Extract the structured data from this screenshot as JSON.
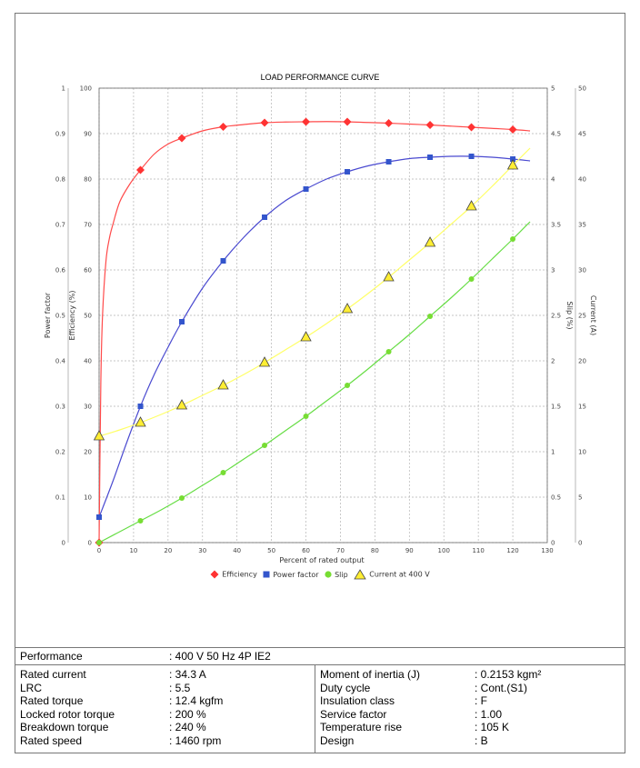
{
  "chart_data": {
    "type": "line",
    "title": "LOAD PERFORMANCE CURVE",
    "xlabel": "Percent of rated output",
    "xlim": [
      0,
      130
    ],
    "xticks": [
      0,
      10,
      20,
      30,
      40,
      50,
      60,
      70,
      80,
      90,
      100,
      110,
      120,
      130
    ],
    "grid": true,
    "legend_position": "bottom",
    "axes": {
      "power_factor": {
        "label": "Power factor",
        "range": [
          0,
          1
        ],
        "ticks": [
          "0",
          "0.1",
          "0.2",
          "0.3",
          "0.4",
          "0.5",
          "0.6",
          "0.7",
          "0.8",
          "0.9",
          "1"
        ],
        "side": "left-outer"
      },
      "efficiency": {
        "label": "Efficiency (%)",
        "range": [
          0,
          100
        ],
        "ticks": [
          "0",
          "10",
          "20",
          "30",
          "40",
          "50",
          "60",
          "70",
          "80",
          "90",
          "100"
        ],
        "side": "left-inner"
      },
      "slip": {
        "label": "Slip (%)",
        "range": [
          0,
          5
        ],
        "ticks": [
          "0",
          "0.5",
          "1",
          "1.5",
          "2",
          "2.5",
          "3",
          "3.5",
          "4",
          "4.5",
          "5"
        ],
        "side": "right-inner"
      },
      "current": {
        "label": "Current (A)",
        "range": [
          0,
          50
        ],
        "ticks": [
          "0",
          "5",
          "10",
          "15",
          "20",
          "25",
          "30",
          "35",
          "40",
          "45",
          "50"
        ],
        "side": "right-outer"
      }
    },
    "series": [
      {
        "name": "Efficiency",
        "axis": "efficiency",
        "color": "#ff4a4a",
        "marker": "diamond",
        "marker_color": "#ff3333",
        "points": [
          [
            0,
            0
          ],
          [
            12,
            82
          ],
          [
            24,
            89
          ],
          [
            36,
            91.5
          ],
          [
            48,
            92.4
          ],
          [
            60,
            92.6
          ],
          [
            72,
            92.6
          ],
          [
            84,
            92.3
          ],
          [
            96,
            91.9
          ],
          [
            108,
            91.4
          ],
          [
            120,
            90.9
          ]
        ],
        "curve": [
          [
            0,
            0
          ],
          [
            0.5,
            35
          ],
          [
            1,
            50
          ],
          [
            2,
            62
          ],
          [
            3,
            67
          ],
          [
            4,
            70
          ],
          [
            6,
            75
          ],
          [
            9,
            79
          ],
          [
            12,
            82
          ],
          [
            16,
            85.5
          ],
          [
            20,
            87.7
          ],
          [
            24,
            89
          ],
          [
            30,
            90.6
          ],
          [
            36,
            91.5
          ],
          [
            42,
            92
          ],
          [
            48,
            92.4
          ],
          [
            54,
            92.55
          ],
          [
            60,
            92.6
          ],
          [
            66,
            92.65
          ],
          [
            72,
            92.6
          ],
          [
            78,
            92.45
          ],
          [
            84,
            92.3
          ],
          [
            90,
            92.1
          ],
          [
            96,
            91.9
          ],
          [
            102,
            91.65
          ],
          [
            108,
            91.4
          ],
          [
            114,
            91.15
          ],
          [
            120,
            90.9
          ],
          [
            125,
            90.6
          ]
        ]
      },
      {
        "name": "Power factor",
        "axis": "power_factor",
        "color": "#4a4ad0",
        "marker": "square",
        "marker_color": "#3355cc",
        "points": [
          [
            0,
            0.056
          ],
          [
            12,
            0.3
          ],
          [
            24,
            0.486
          ],
          [
            36,
            0.62
          ],
          [
            48,
            0.716
          ],
          [
            60,
            0.778
          ],
          [
            72,
            0.816
          ],
          [
            84,
            0.838
          ],
          [
            96,
            0.848
          ],
          [
            108,
            0.85
          ],
          [
            120,
            0.844
          ]
        ],
        "curve": [
          [
            0,
            0.056
          ],
          [
            4,
            0.135
          ],
          [
            8,
            0.22
          ],
          [
            12,
            0.3
          ],
          [
            16,
            0.37
          ],
          [
            20,
            0.43
          ],
          [
            24,
            0.486
          ],
          [
            30,
            0.56
          ],
          [
            36,
            0.62
          ],
          [
            42,
            0.672
          ],
          [
            48,
            0.716
          ],
          [
            54,
            0.752
          ],
          [
            60,
            0.778
          ],
          [
            66,
            0.8
          ],
          [
            72,
            0.816
          ],
          [
            78,
            0.829
          ],
          [
            84,
            0.838
          ],
          [
            90,
            0.845
          ],
          [
            96,
            0.848
          ],
          [
            102,
            0.85
          ],
          [
            108,
            0.85
          ],
          [
            114,
            0.848
          ],
          [
            120,
            0.844
          ],
          [
            125,
            0.84
          ]
        ]
      },
      {
        "name": "Slip",
        "axis": "slip",
        "color": "#66dd44",
        "marker": "circle",
        "marker_color": "#77dd33",
        "points": [
          [
            0,
            0
          ],
          [
            12,
            0.24
          ],
          [
            24,
            0.49
          ],
          [
            36,
            0.77
          ],
          [
            48,
            1.07
          ],
          [
            60,
            1.39
          ],
          [
            72,
            1.73
          ],
          [
            84,
            2.1
          ],
          [
            96,
            2.49
          ],
          [
            108,
            2.9
          ],
          [
            120,
            3.34
          ]
        ],
        "curve": [
          [
            0,
            0
          ],
          [
            6,
            0.12
          ],
          [
            12,
            0.24
          ],
          [
            18,
            0.36
          ],
          [
            24,
            0.49
          ],
          [
            30,
            0.63
          ],
          [
            36,
            0.77
          ],
          [
            42,
            0.92
          ],
          [
            48,
            1.07
          ],
          [
            54,
            1.23
          ],
          [
            60,
            1.39
          ],
          [
            66,
            1.56
          ],
          [
            72,
            1.73
          ],
          [
            78,
            1.91
          ],
          [
            84,
            2.1
          ],
          [
            90,
            2.29
          ],
          [
            96,
            2.49
          ],
          [
            102,
            2.69
          ],
          [
            108,
            2.9
          ],
          [
            114,
            3.12
          ],
          [
            120,
            3.34
          ],
          [
            125,
            3.53
          ]
        ]
      },
      {
        "name": "Current at 400 V",
        "axis": "current",
        "color": "#ffff66",
        "marker": "triangle",
        "marker_color": "#ffee33",
        "points": [
          [
            0,
            11.7
          ],
          [
            12,
            13.2
          ],
          [
            24,
            15.1
          ],
          [
            36,
            17.3
          ],
          [
            48,
            19.8
          ],
          [
            60,
            22.6
          ],
          [
            72,
            25.7
          ],
          [
            84,
            29.2
          ],
          [
            96,
            33
          ],
          [
            108,
            37
          ],
          [
            120,
            41.5
          ]
        ],
        "curve": [
          [
            0,
            11.7
          ],
          [
            6,
            12.4
          ],
          [
            12,
            13.2
          ],
          [
            18,
            14.1
          ],
          [
            24,
            15.1
          ],
          [
            30,
            16.2
          ],
          [
            36,
            17.3
          ],
          [
            42,
            18.5
          ],
          [
            48,
            19.8
          ],
          [
            54,
            21.2
          ],
          [
            60,
            22.6
          ],
          [
            66,
            24.1
          ],
          [
            72,
            25.7
          ],
          [
            78,
            27.4
          ],
          [
            84,
            29.2
          ],
          [
            90,
            31.1
          ],
          [
            96,
            33
          ],
          [
            102,
            35
          ],
          [
            108,
            37
          ],
          [
            114,
            39.2
          ],
          [
            120,
            41.5
          ],
          [
            125,
            43.4
          ]
        ]
      }
    ]
  },
  "specs": {
    "performance_label": "Performance",
    "performance_value": ": 400 V 50 Hz 4P IE2",
    "left": [
      {
        "label": "Rated current",
        "value": ": 34.3 A"
      },
      {
        "label": "LRC",
        "value": ": 5.5"
      },
      {
        "label": "Rated torque",
        "value": ": 12.4 kgfm"
      },
      {
        "label": "Locked rotor torque",
        "value": ": 200 %"
      },
      {
        "label": "Breakdown torque",
        "value": ": 240 %"
      },
      {
        "label": "Rated speed",
        "value": ": 1460 rpm"
      }
    ],
    "right": [
      {
        "label": "Moment of inertia (J)",
        "value": ": 0.2153 kgm²"
      },
      {
        "label": "Duty cycle",
        "value": ": Cont.(S1)"
      },
      {
        "label": "Insulation class",
        "value": ": F"
      },
      {
        "label": "Service factor",
        "value": ": 1.00"
      },
      {
        "label": "Temperature rise",
        "value": ": 105 K"
      },
      {
        "label": "Design",
        "value": ": B"
      }
    ]
  }
}
